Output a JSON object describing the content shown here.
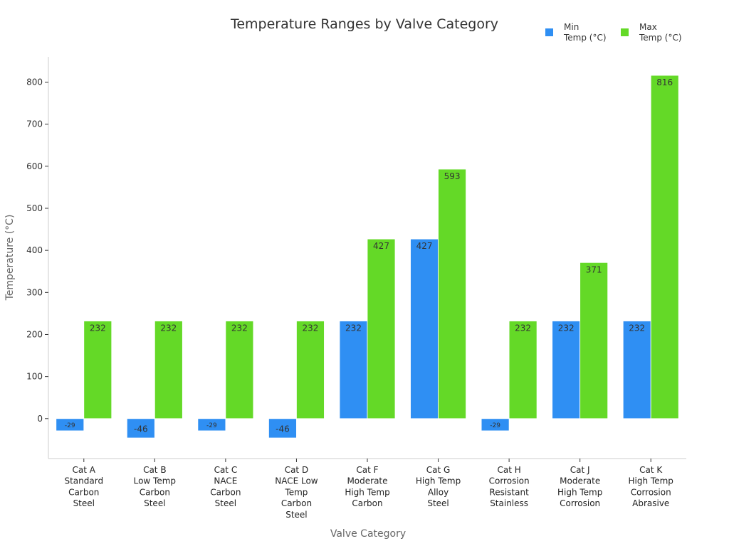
{
  "chart_data": {
    "type": "bar",
    "title": "Temperature Ranges by Valve Category",
    "xlabel": "Valve Category",
    "ylabel": "Temperature (°C)",
    "ylim": [
      -95,
      860
    ],
    "yticks": [
      0,
      100,
      200,
      300,
      400,
      500,
      600,
      700,
      800
    ],
    "legend_position": "top-right",
    "grid": false,
    "categories": [
      "Cat A\nStandard\nCarbon\nSteel",
      "Cat B\nLow Temp\nCarbon\nSteel",
      "Cat C\nNACE\nCarbon\nSteel",
      "Cat D\nNACE Low\nTemp\nCarbon\nSteel",
      "Cat F\nModerate\nHigh Temp\nCarbon",
      "Cat G\nHigh Temp\nAlloy\nSteel",
      "Cat H\nCorrosion\nResistant\nStainless",
      "Cat J\nModerate\nHigh Temp\nCorrosion",
      "Cat K\nHigh Temp\nCorrosion\nAbrasive"
    ],
    "series": [
      {
        "name": "Min\nTemp (°C)",
        "color": "#2f8ff3",
        "values": [
          -29,
          -46,
          -29,
          -46,
          232,
          427,
          -29,
          232,
          232
        ]
      },
      {
        "name": "Max\nTemp (°C)",
        "color": "#64d927",
        "values": [
          232,
          232,
          232,
          232,
          427,
          593,
          232,
          371,
          816
        ]
      }
    ]
  }
}
